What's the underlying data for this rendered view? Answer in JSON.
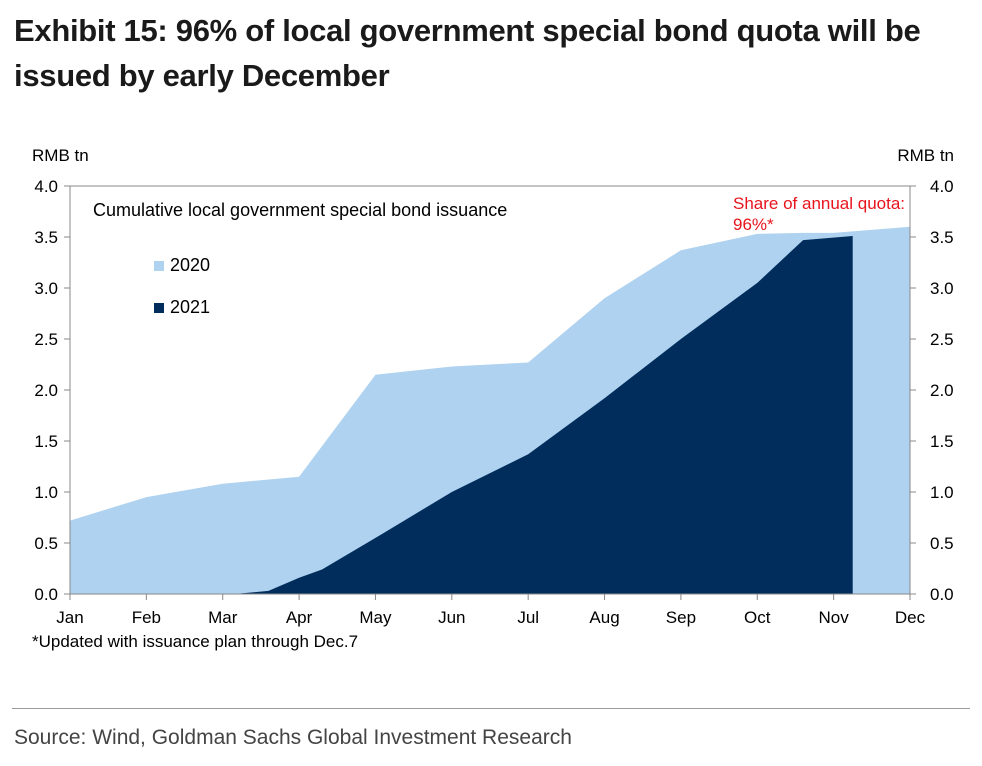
{
  "title": "Exhibit 15: 96% of local government special bond quota will be issued by early December",
  "footnote": "*Updated with issuance plan through Dec.7",
  "source": "Source: Wind, Goldman Sachs Global Investment Research",
  "chart_data": {
    "type": "area",
    "chart_title": "Cumulative local government special bond issuance",
    "y_unit_left": "RMB tn",
    "y_unit_right": "RMB tn",
    "ylim": [
      0,
      4
    ],
    "yticks": [
      "0.0",
      "0.5",
      "1.0",
      "1.5",
      "2.0",
      "2.5",
      "3.0",
      "3.5",
      "4.0"
    ],
    "categories": [
      "Jan",
      "Feb",
      "Mar",
      "Apr",
      "May",
      "Jun",
      "Jul",
      "Aug",
      "Sep",
      "Oct",
      "Nov",
      "Dec"
    ],
    "legend_position": "top-left",
    "grid": false,
    "series": [
      {
        "name": "2020",
        "color": "#aed2ef",
        "x": [
          0,
          1,
          2,
          3,
          4,
          5,
          6,
          7,
          8,
          9,
          9.6,
          10,
          11
        ],
        "values": [
          0.72,
          0.95,
          1.08,
          1.15,
          2.15,
          2.23,
          2.27,
          2.9,
          3.37,
          3.53,
          3.54,
          3.54,
          3.6
        ]
      },
      {
        "name": "2021",
        "color": "#002d5b",
        "x": [
          2.15,
          2.3,
          2.6,
          3,
          3.3,
          4,
          5,
          6,
          7,
          8,
          9,
          9.6,
          10.25,
          10.25
        ],
        "values": [
          0,
          0.01,
          0.03,
          0.16,
          0.24,
          0.55,
          1.0,
          1.37,
          1.92,
          2.5,
          3.05,
          3.47,
          3.51,
          0
        ]
      }
    ],
    "annotation": {
      "lines": [
        "Share of annual quota:",
        "96%*"
      ],
      "color": "#e8141c"
    }
  }
}
